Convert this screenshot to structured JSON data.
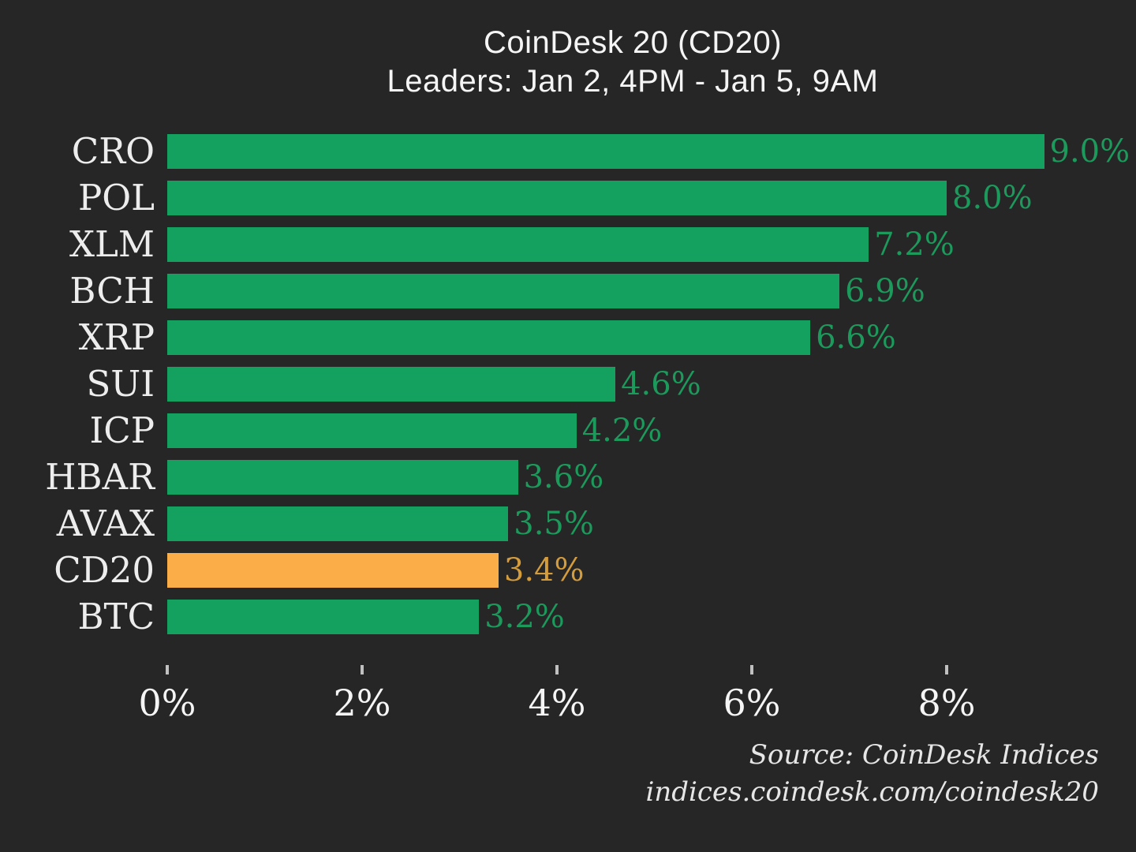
{
  "title": {
    "line1": "CoinDesk 20 (CD20)",
    "line2": "Leaders: Jan 2, 4PM - Jan 5, 9AM"
  },
  "chart_data": {
    "type": "bar",
    "orientation": "horizontal",
    "title": "CoinDesk 20 (CD20) Leaders: Jan 2, 4PM - Jan 5, 9AM",
    "categories": [
      "CRO",
      "POL",
      "XLM",
      "BCH",
      "XRP",
      "SUI",
      "ICP",
      "HBAR",
      "AVAX",
      "CD20",
      "BTC"
    ],
    "values": [
      9.0,
      8.0,
      7.2,
      6.9,
      6.6,
      4.6,
      4.2,
      3.6,
      3.5,
      3.4,
      3.2
    ],
    "value_labels": [
      "9.0%",
      "8.0%",
      "7.2%",
      "6.9%",
      "6.6%",
      "4.6%",
      "4.2%",
      "3.6%",
      "3.5%",
      "3.4%",
      "3.2%"
    ],
    "highlight_category": "CD20",
    "x_ticks": [
      {
        "value": 0,
        "label": "0%"
      },
      {
        "value": 2,
        "label": "2%"
      },
      {
        "value": 4,
        "label": "4%"
      },
      {
        "value": 6,
        "label": "6%"
      },
      {
        "value": 8,
        "label": "8%"
      }
    ],
    "xlim": [
      0,
      9.9
    ],
    "grid": false,
    "legend": "none",
    "colors": {
      "background": "#262626",
      "bar": "#14A15F",
      "bar_highlight": "#FBAE47",
      "value_label": "#1B9A5C",
      "value_label_highlight": "#D59C3C",
      "category_label": "#EDEDED",
      "tick_label": "#F5F5F5",
      "title_text": "#F5F5F5"
    }
  },
  "source": {
    "line1": "Source: CoinDesk Indices",
    "line2": "indices.coindesk.com/coindesk20"
  }
}
